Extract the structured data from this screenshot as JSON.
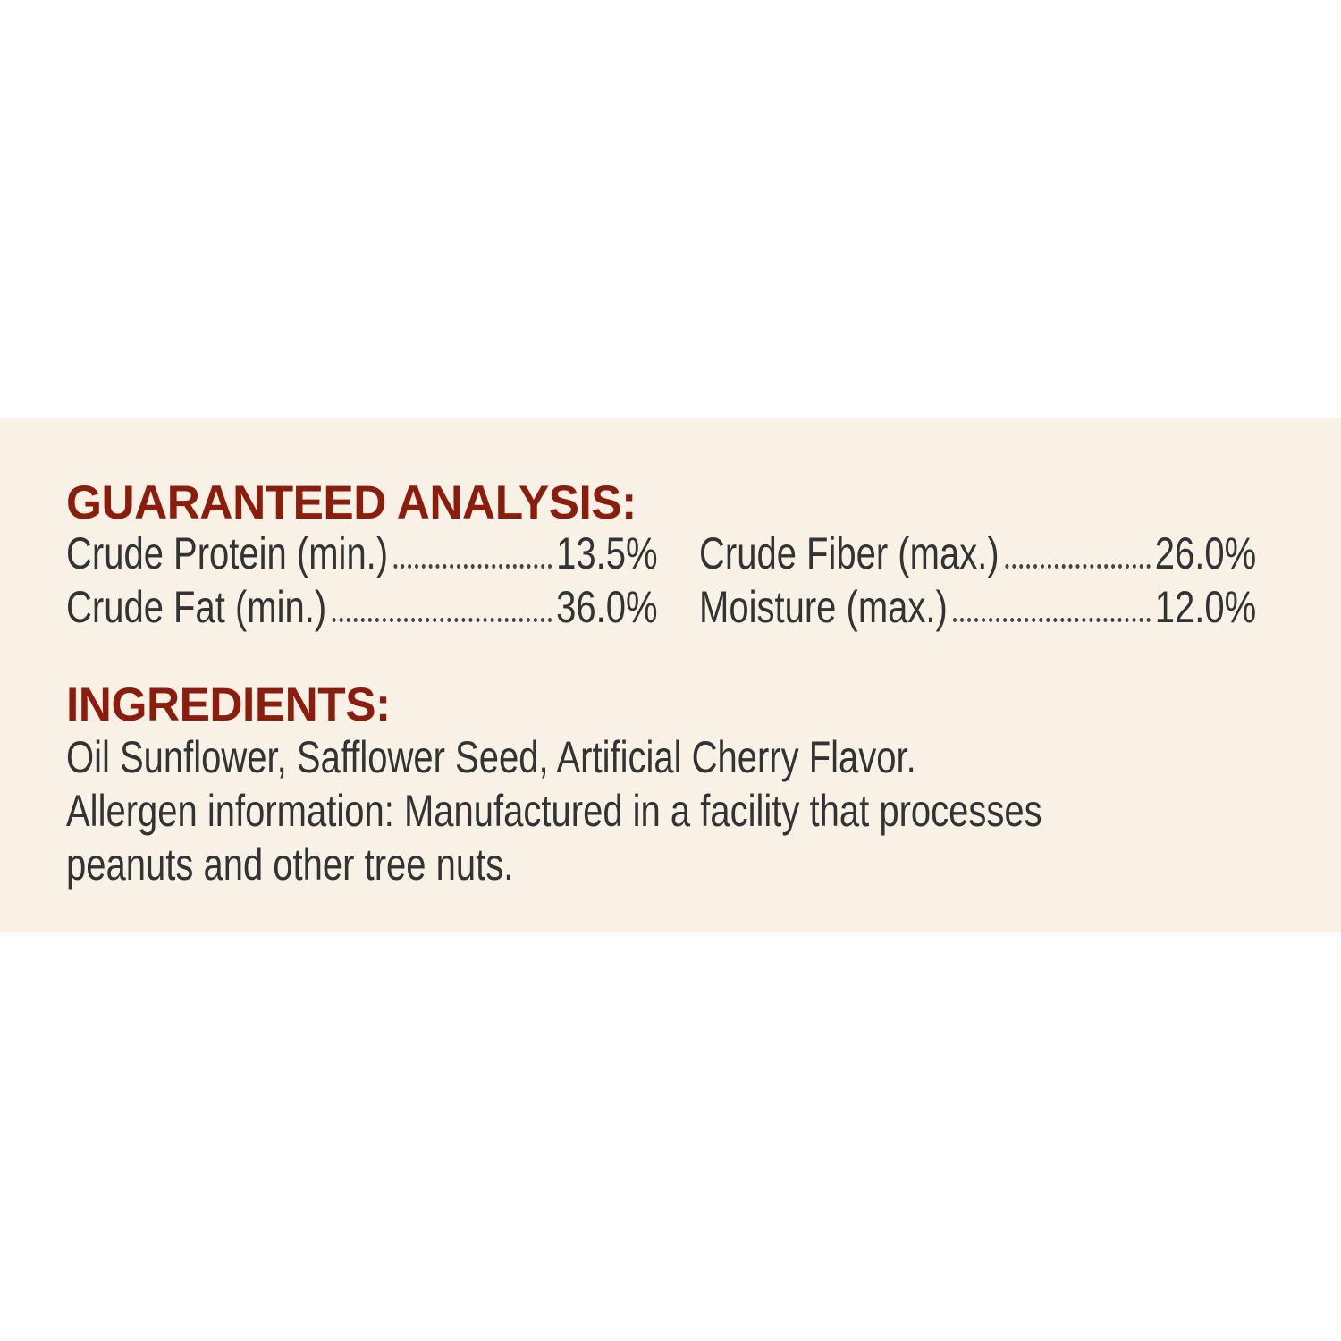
{
  "analysis": {
    "heading": "GUARANTEED ANALYSIS:",
    "items": [
      {
        "label": "Crude Protein (min.)",
        "value": "13.5%"
      },
      {
        "label": "Crude Fat (min.)",
        "value": "36.0%"
      },
      {
        "label": "Crude Fiber (max.)",
        "value": "26.0%"
      },
      {
        "label": "Moisture (max.)",
        "value": "12.0%"
      }
    ]
  },
  "ingredients": {
    "heading": "INGREDIENTS:",
    "lines": [
      "Oil Sunflower, Safflower Seed, Artificial Cherry Flavor.",
      "Allergen information: Manufactured in a facility that processes",
      "peanuts and other tree nuts."
    ]
  },
  "colors": {
    "heading": "#8c1c0c",
    "text": "#333333",
    "band": "#f8f1e5"
  }
}
